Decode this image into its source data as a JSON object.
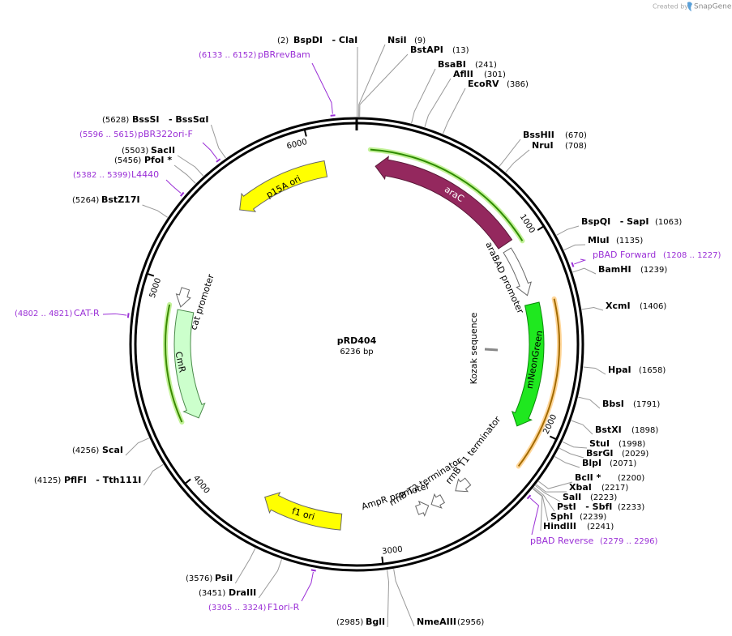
{
  "header": {
    "credit": "Created by",
    "brand": "SnapGene"
  },
  "plasmid": {
    "name": "pRD404",
    "size": "6236 bp"
  },
  "ticks": [
    1000,
    2000,
    3000,
    4000,
    5000,
    6000
  ],
  "sites": [
    {
      "name": "BspDI   - ClaI",
      "position": "(2)"
    },
    {
      "name": "NsiI",
      "position": "(9)"
    },
    {
      "name": "BstAPI",
      "position": "(13)"
    },
    {
      "name": "BsaBI",
      "position": "(241)"
    },
    {
      "name": "AflII",
      "position": "(301)"
    },
    {
      "name": "EcoRV",
      "position": "(386)"
    },
    {
      "name": "BssHII",
      "position": "(670)"
    },
    {
      "name": "NruI",
      "position": "(708)"
    },
    {
      "name": "BspQI   - SapI",
      "position": "(1063)"
    },
    {
      "name": "MluI",
      "position": "(1135)"
    },
    {
      "name": "BamHI",
      "position": "(1239)"
    },
    {
      "name": "XcmI",
      "position": "(1406)"
    },
    {
      "name": "HpaI",
      "position": "(1658)"
    },
    {
      "name": "BbsI",
      "position": "(1791)"
    },
    {
      "name": "BstXI",
      "position": "(1898)"
    },
    {
      "name": "StuI",
      "position": "(1998)"
    },
    {
      "name": "BsrGI",
      "position": "(2029)"
    },
    {
      "name": "BlpI",
      "position": "(2071)"
    },
    {
      "name": "BclI *",
      "position": "(2200)"
    },
    {
      "name": "XbaI",
      "position": "(2217)"
    },
    {
      "name": "SalI",
      "position": "(2223)"
    },
    {
      "name": "PstI   - SbfI",
      "position": "(2233)"
    },
    {
      "name": "SphI",
      "position": "(2239)"
    },
    {
      "name": "HindIII",
      "position": "(2241)"
    },
    {
      "name": "NmeAIII",
      "position": "(2956)"
    },
    {
      "name": "BglI",
      "position": "(2985)"
    },
    {
      "name": "DraIII",
      "position": "(3451)"
    },
    {
      "name": "PsiI",
      "position": "(3576)"
    },
    {
      "name": "PflFI   - Tth111I",
      "position": "(4125)"
    },
    {
      "name": "ScaI",
      "position": "(4256)"
    },
    {
      "name": "BstZ17I",
      "position": "(5264)"
    },
    {
      "name": "PfoI *",
      "position": "(5456)"
    },
    {
      "name": "SacII",
      "position": "(5503)"
    },
    {
      "name": "BssSI   - BssSαI",
      "position": "(5628)"
    }
  ],
  "primers": [
    {
      "name": "pBRrevBam",
      "range": "(6133 .. 6152)"
    },
    {
      "name": "pBR322ori-F",
      "range": "(5596 .. 5615)"
    },
    {
      "name": "L4440",
      "range": "(5382 .. 5399)"
    },
    {
      "name": "CAT-R",
      "range": "(4802 .. 4821)"
    },
    {
      "name": "pBAD Forward",
      "range": "(1208 .. 1227)"
    },
    {
      "name": "pBAD Reverse",
      "range": "(2279 .. 2296)"
    },
    {
      "name": "F1ori-R",
      "range": "(3305 .. 3324)"
    }
  ],
  "features": [
    {
      "name": "araC"
    },
    {
      "name": "araBAD promoter"
    },
    {
      "name": "mNeonGreen"
    },
    {
      "name": "Kozak sequence"
    },
    {
      "name": "p15A ori"
    },
    {
      "name": "cat promoter"
    },
    {
      "name": "CmR"
    },
    {
      "name": "f1 ori"
    },
    {
      "name": "rrnB T1 terminator"
    },
    {
      "name": "rrnB T2 terminator"
    },
    {
      "name": "AmpR promoter"
    }
  ]
}
